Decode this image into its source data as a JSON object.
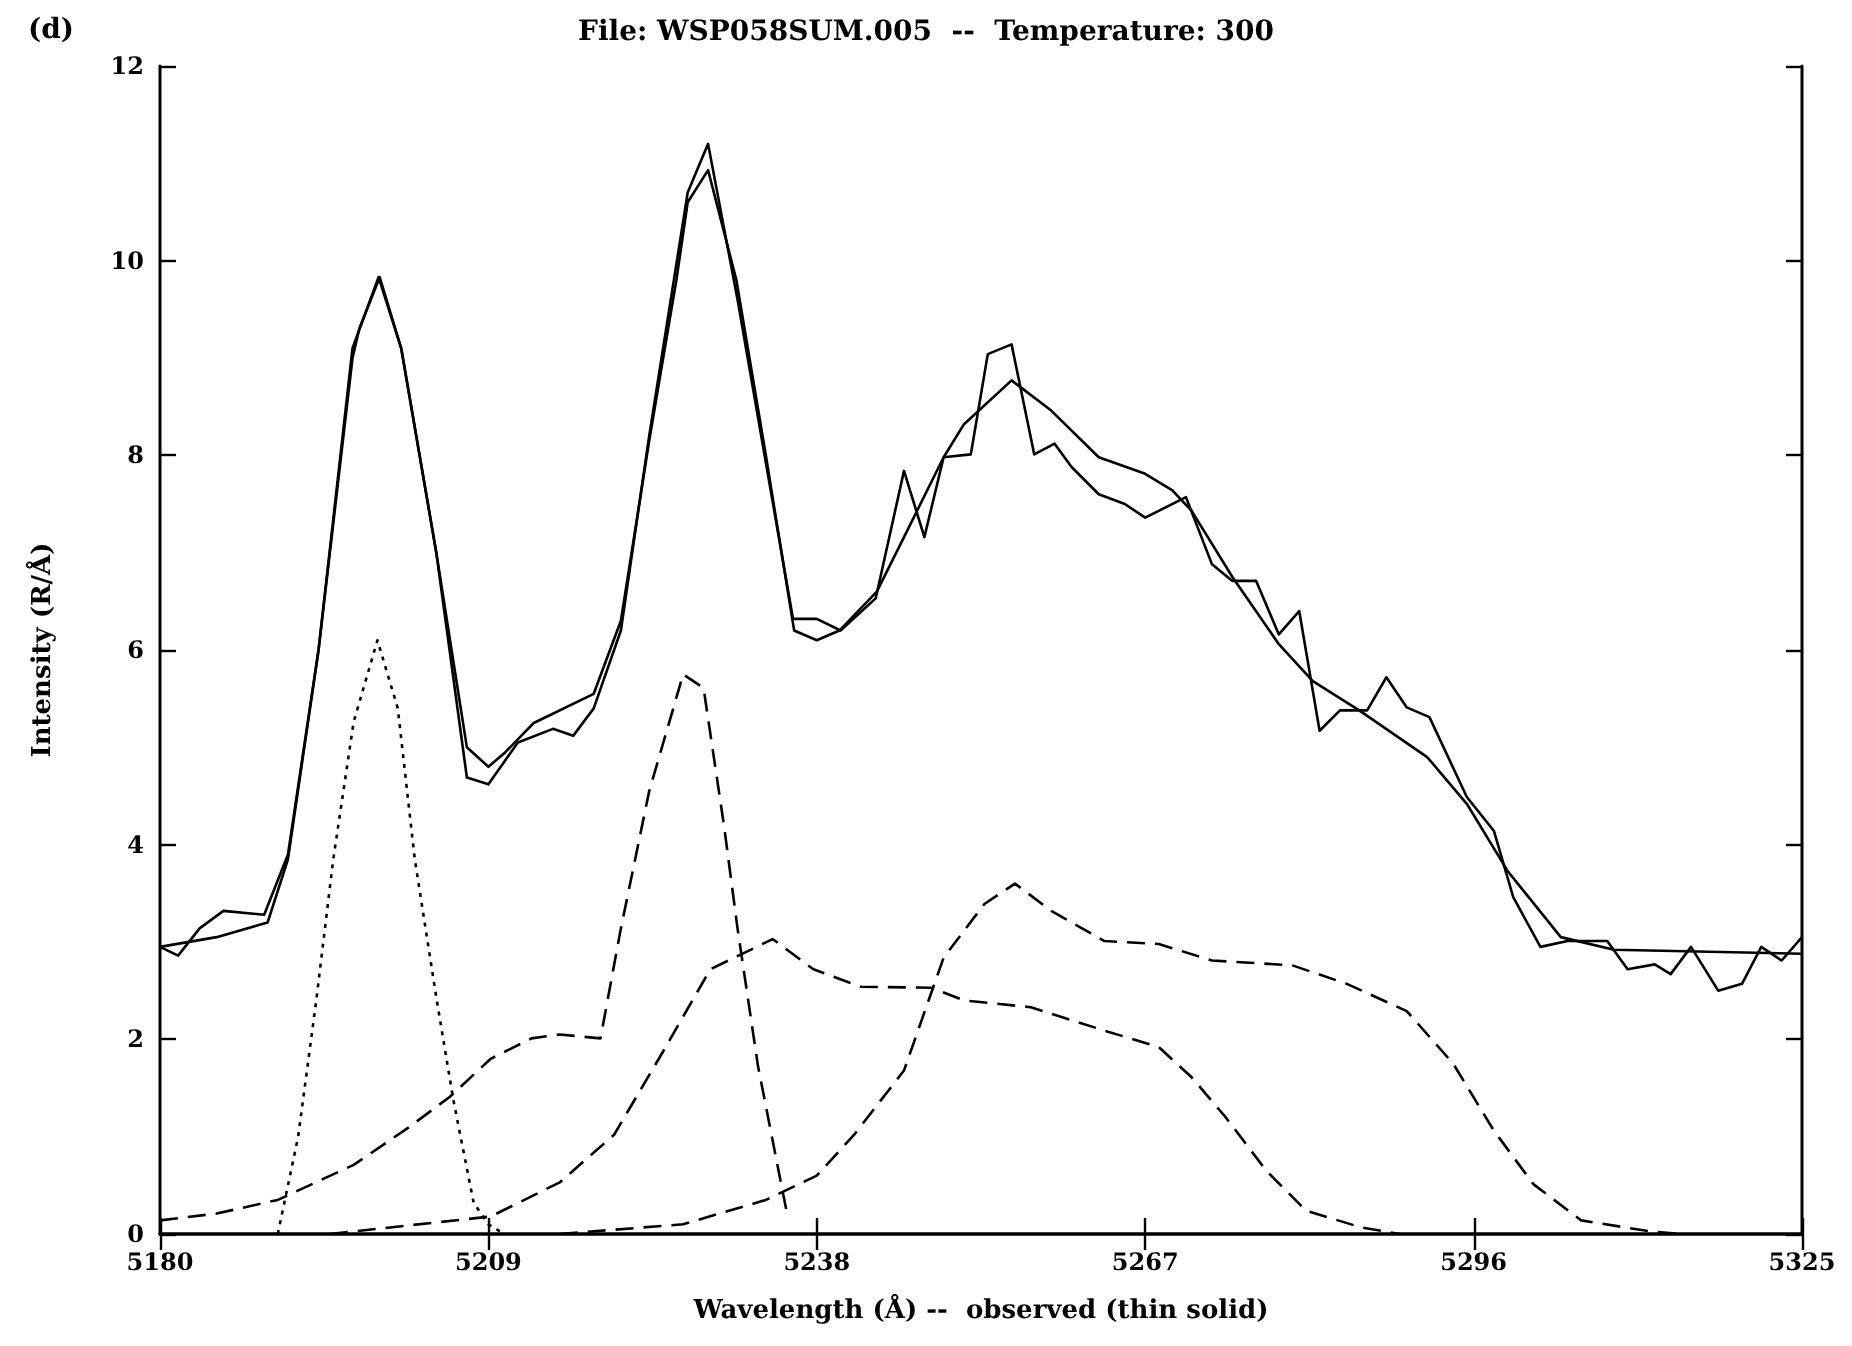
{
  "chart_data": {
    "type": "line",
    "title": "File: WSP058SUM.005  --  Temperature: 300",
    "xlabel": "Wavelength (Å) --  observed (thin solid)",
    "ylabel": "Intensity (R/Å)",
    "annotations": [
      "(d)"
    ],
    "xlim": [
      5180,
      5325
    ],
    "xticks": [
      5180,
      5209,
      5238,
      5267,
      5296,
      5325
    ],
    "ylim": [
      0,
      12
    ],
    "yticks": [
      0,
      2,
      4,
      6,
      8,
      10,
      12
    ],
    "grid": false,
    "marker": "none",
    "series": [
      {
        "color": "#000000",
        "line_style": "solid",
        "x": [
          5180,
          5185,
          5189.5,
          5191.3,
          5194,
          5196,
          5197,
          5197.6,
          5199.4,
          5201.3,
          5204.4,
          5207.1,
          5209,
          5210.5,
          5213,
          5218.3,
          5220.7,
          5223.2,
          5225.6,
          5226.6,
          5228.4,
          5230.9,
          5233.5,
          5236,
          5238,
          5240,
          5243.3,
          5245.7,
          5249.2,
          5251,
          5255.2,
          5258.7,
          5262.9,
          5267,
          5269.4,
          5271.1,
          5274.7,
          5278.8,
          5281.8,
          5285.9,
          5291.9,
          5295.4,
          5299,
          5303.7,
          5308.4,
          5325
        ],
        "values": [
          2.95,
          3.05,
          3.2,
          3.85,
          6.0,
          8.0,
          9.0,
          9.3,
          9.83,
          9.1,
          7.0,
          5.0,
          4.8,
          4.95,
          5.25,
          5.55,
          6.3,
          8.15,
          9.8,
          10.6,
          10.93,
          9.8,
          8.0,
          6.2,
          6.1,
          6.2,
          6.6,
          7.16,
          7.98,
          8.32,
          8.77,
          8.46,
          7.98,
          7.81,
          7.64,
          7.43,
          6.75,
          6.06,
          5.68,
          5.38,
          4.9,
          4.42,
          3.73,
          3.05,
          2.92,
          2.88
        ]
      },
      {
        "color": "#000000",
        "line_style": "solid",
        "x": [
          5180,
          5181.6,
          5183.5,
          5185.6,
          5189.2,
          5191.3,
          5194,
          5197,
          5199.3,
          5201.3,
          5204.4,
          5207.1,
          5209,
          5211.6,
          5214.7,
          5216.5,
          5218.3,
          5220.7,
          5223.2,
          5226.6,
          5228.4,
          5231,
          5235.9,
          5238,
          5240.1,
          5243.2,
          5245.7,
          5247.5,
          5249.2,
          5251.6,
          5253.1,
          5255.2,
          5257.2,
          5259,
          5260.5,
          5262.9,
          5265.2,
          5267,
          5270.6,
          5272.9,
          5274.7,
          5276.8,
          5278.8,
          5280.6,
          5282.4,
          5284.2,
          5286.6,
          5288.3,
          5290.1,
          5292.1,
          5295.4,
          5297.8,
          5299.5,
          5301.9,
          5304.3,
          5307.8,
          5309.6,
          5312,
          5313.4,
          5315.2,
          5317.6,
          5319.7,
          5321.4,
          5323.2,
          5325
        ],
        "values": [
          2.95,
          2.86,
          3.14,
          3.32,
          3.28,
          3.9,
          6.0,
          9.1,
          9.83,
          9.1,
          7.0,
          4.69,
          4.62,
          5.05,
          5.19,
          5.12,
          5.4,
          6.2,
          8.2,
          10.7,
          11.2,
          9.6,
          6.32,
          6.32,
          6.2,
          6.53,
          7.84,
          7.16,
          7.98,
          8.01,
          9.04,
          9.14,
          8.01,
          8.12,
          7.88,
          7.6,
          7.5,
          7.36,
          7.57,
          6.88,
          6.71,
          6.71,
          6.16,
          6.4,
          5.17,
          5.38,
          5.38,
          5.72,
          5.41,
          5.31,
          4.49,
          4.14,
          3.46,
          2.95,
          3.01,
          3.01,
          2.72,
          2.77,
          2.67,
          2.95,
          2.5,
          2.57,
          2.95,
          2.81,
          3.05
        ]
      },
      {
        "color": "#000000",
        "line_style": "dotted",
        "x": [
          5190.4,
          5192.2,
          5193.8,
          5195.3,
          5197.1,
          5199.2,
          5201,
          5202.5,
          5204.4,
          5205.9,
          5207.7,
          5209,
          5210.4
        ],
        "values": [
          0,
          1.0,
          2.4,
          3.85,
          5.26,
          6.1,
          5.4,
          3.85,
          2.43,
          1.38,
          0.32,
          0.1,
          0
        ]
      },
      {
        "color": "#000000",
        "line_style": "dashed",
        "x": [
          5180,
          5185,
          5190.4,
          5197.1,
          5201.9,
          5205.6,
          5209.2,
          5212.8,
          5215.3,
          5218.9,
          5220.7,
          5223.2,
          5226.2,
          5228,
          5229.8,
          5231,
          5232.8,
          5235.3
        ],
        "values": [
          0.14,
          0.21,
          0.35,
          0.71,
          1.09,
          1.41,
          1.8,
          2.01,
          2.05,
          2.01,
          3.14,
          4.55,
          5.75,
          5.61,
          4.2,
          3.14,
          1.73,
          0.25
        ]
      },
      {
        "color": "#000000",
        "line_style": "dashed",
        "x": [
          5195,
          5209.2,
          5215.3,
          5220.1,
          5224.4,
          5228.6,
          5234.1,
          5237.7,
          5241.9,
          5248.1,
          5251,
          5256.9,
          5263.4,
          5268.2,
          5271.1,
          5274.1,
          5277.7,
          5281.2,
          5286,
          5289.5
        ],
        "values": [
          0,
          0.18,
          0.53,
          1.02,
          1.87,
          2.72,
          3.03,
          2.72,
          2.54,
          2.53,
          2.4,
          2.33,
          2.09,
          1.92,
          1.61,
          1.2,
          0.65,
          0.24,
          0.07,
          0
        ]
      },
      {
        "color": "#000000",
        "line_style": "dashed",
        "x": [
          5215.3,
          5226.2,
          5233.5,
          5238,
          5241.3,
          5245.7,
          5249.2,
          5252.8,
          5255.5,
          5258.7,
          5263.4,
          5268.2,
          5272.9,
          5280,
          5284.8,
          5290.1,
          5294.2,
          5297.8,
          5301.3,
          5305.5,
          5311.4,
          5314.4
        ],
        "values": [
          0,
          0.1,
          0.35,
          0.6,
          1.02,
          1.68,
          2.84,
          3.39,
          3.6,
          3.32,
          3.01,
          2.98,
          2.81,
          2.76,
          2.57,
          2.29,
          1.75,
          1.06,
          0.51,
          0.14,
          0.03,
          0
        ]
      }
    ]
  }
}
